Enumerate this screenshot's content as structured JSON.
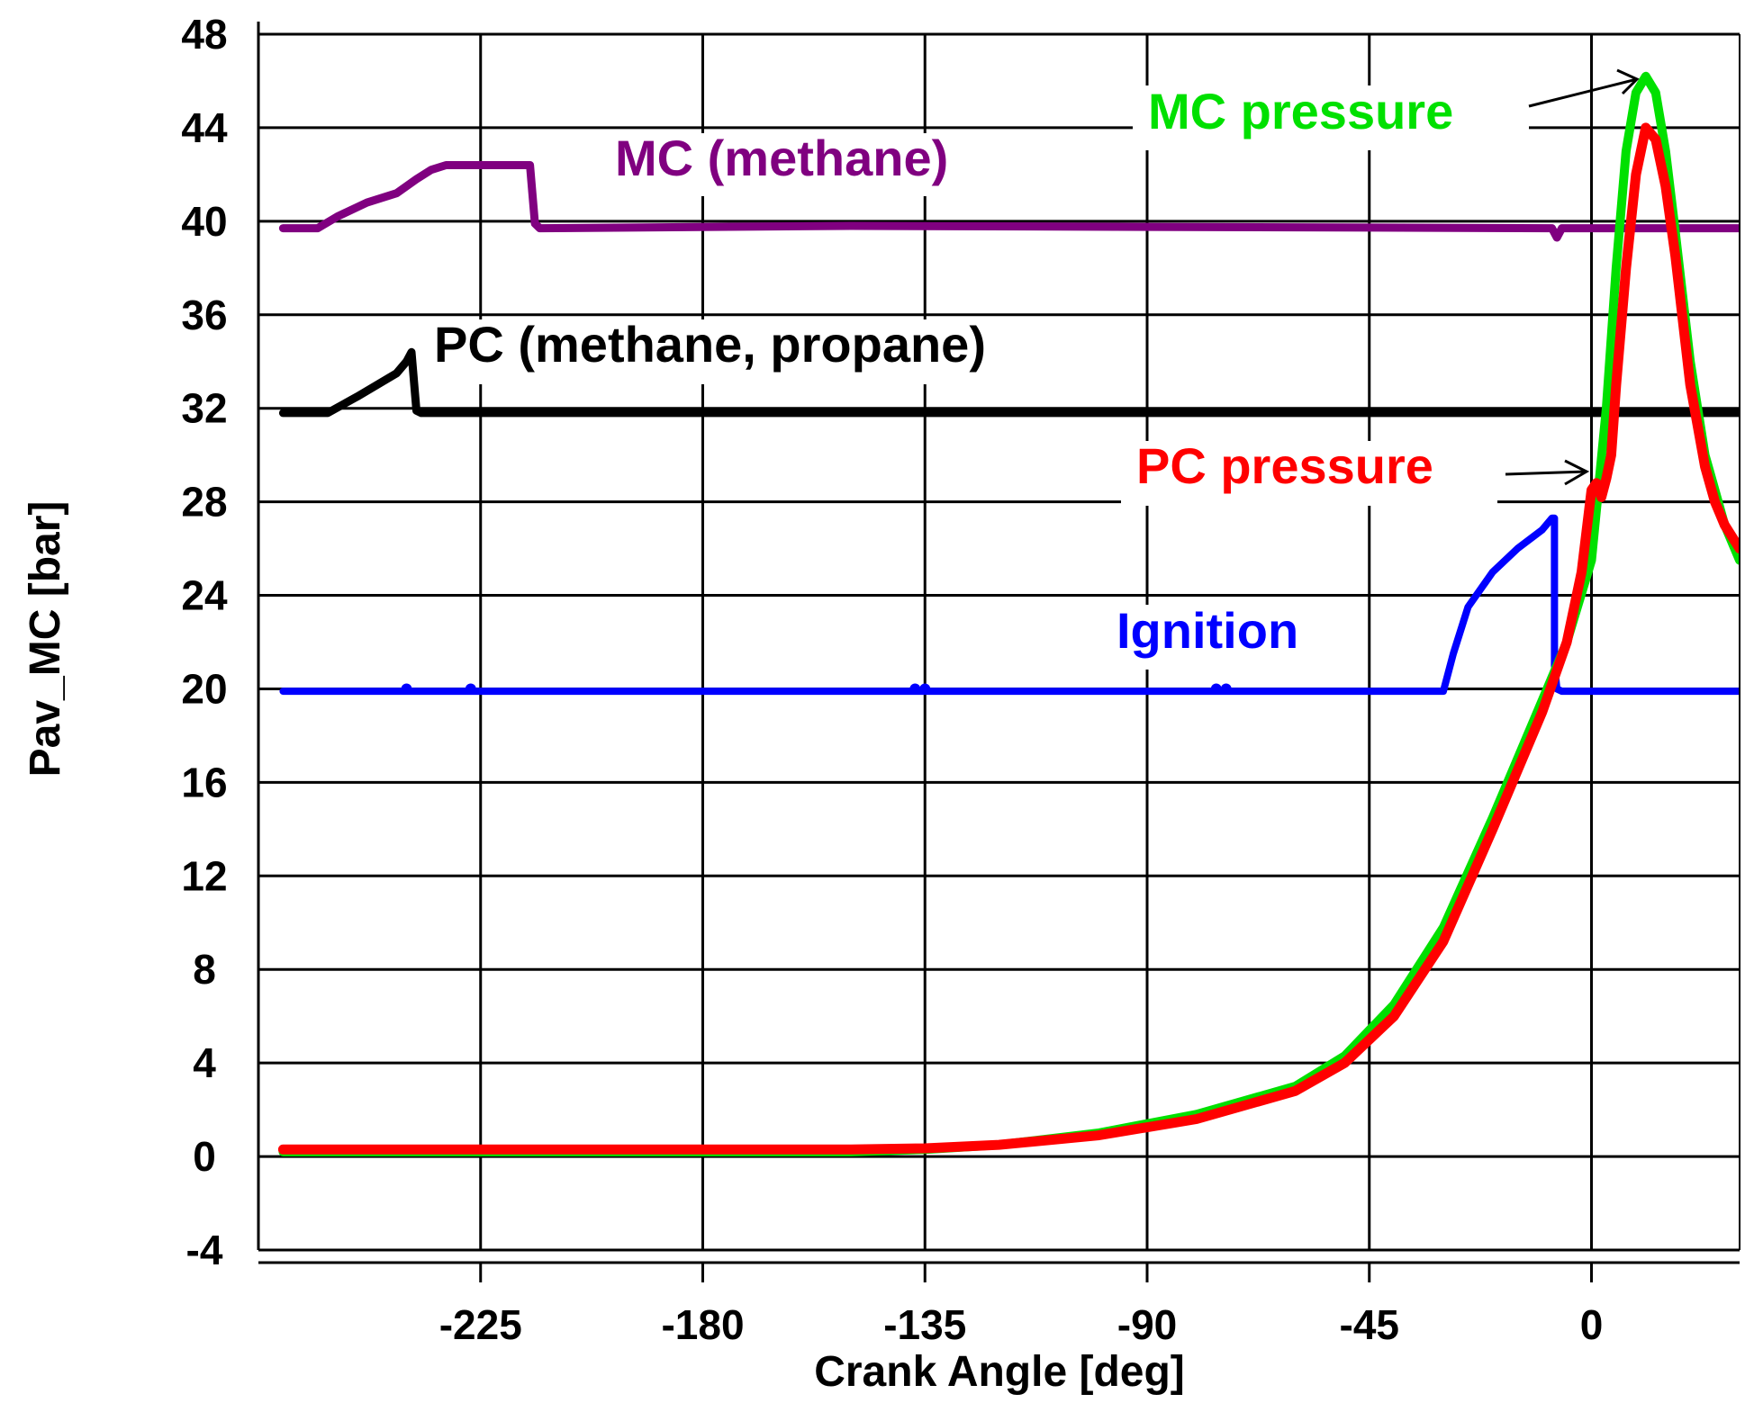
{
  "chart_data": {
    "type": "line",
    "title": "",
    "xlabel": "Crank Angle [deg]",
    "ylabel": "Pav_MC [bar]",
    "xlim": [
      -270,
      30
    ],
    "ylim": [
      -4,
      48
    ],
    "xticks": [
      -225,
      -180,
      -135,
      -90,
      -45,
      0
    ],
    "yticks": [
      -4,
      0,
      4,
      8,
      12,
      16,
      20,
      24,
      28,
      32,
      36,
      40,
      44,
      48
    ],
    "grid": true,
    "series": [
      {
        "name": "MC (methane)",
        "color": "#800080",
        "x": [
          -265,
          -258,
          -254,
          -248,
          -242,
          -238,
          -235,
          -232,
          -215,
          -214,
          -213,
          -150,
          -8,
          -7,
          -6,
          30
        ],
        "y": [
          39.7,
          39.7,
          40.2,
          40.8,
          41.2,
          41.8,
          42.2,
          42.4,
          42.4,
          39.9,
          39.7,
          39.8,
          39.7,
          39.3,
          39.7,
          39.7
        ]
      },
      {
        "name": "PC (methane, propane)",
        "color": "#000000",
        "x": [
          -265,
          -256,
          -250,
          -246,
          -242,
          -240,
          -239,
          -238,
          -237,
          30
        ],
        "y": [
          31.8,
          31.8,
          32.5,
          33.0,
          33.5,
          34.0,
          34.4,
          31.9,
          31.8,
          31.8
        ]
      },
      {
        "name": "Ignition",
        "color": "#0000ff",
        "x": [
          -265,
          -30,
          -28,
          -25,
          -20,
          -15,
          -10,
          -8,
          -7.5,
          -7.5,
          -7,
          -6,
          30
        ],
        "y": [
          19.9,
          19.9,
          21.5,
          23.5,
          25.0,
          26.0,
          26.8,
          27.3,
          27.3,
          21.0,
          20.0,
          19.9,
          19.9
        ],
        "markers_x": [
          -240,
          -227,
          -137,
          -135,
          -76,
          -74
        ],
        "markers_y": [
          20.0,
          20.0,
          20.0,
          20.0,
          20.0,
          20.0
        ]
      },
      {
        "name": "MC pressure",
        "color": "#00e000",
        "x": [
          -265,
          -150,
          -135,
          -120,
          -100,
          -80,
          -60,
          -50,
          -40,
          -30,
          -20,
          -10,
          -5,
          0,
          3,
          5,
          7,
          9,
          11,
          13,
          15,
          17,
          20,
          23,
          25,
          27,
          30
        ],
        "y": [
          0.2,
          0.2,
          0.3,
          0.5,
          1.0,
          1.8,
          3.0,
          4.3,
          6.5,
          9.8,
          14.5,
          19.5,
          22.0,
          25.5,
          32.0,
          38.0,
          43.0,
          45.5,
          46.2,
          45.5,
          43.0,
          39.5,
          34.0,
          30.0,
          28.5,
          27.0,
          25.5
        ]
      },
      {
        "name": "PC pressure",
        "color": "#ff0000",
        "x": [
          -265,
          -150,
          -135,
          -120,
          -100,
          -80,
          -60,
          -50,
          -40,
          -30,
          -20,
          -10,
          -5,
          -2,
          0,
          1,
          2,
          3,
          4,
          5,
          7,
          9,
          11,
          13,
          15,
          17,
          20,
          23,
          25,
          27,
          30
        ],
        "y": [
          0.3,
          0.3,
          0.35,
          0.5,
          0.9,
          1.6,
          2.8,
          4.0,
          6.0,
          9.2,
          14.0,
          19.0,
          22.0,
          25.0,
          28.5,
          28.8,
          28.2,
          29.0,
          30.0,
          33.0,
          38.0,
          42.0,
          44.0,
          43.5,
          41.5,
          38.5,
          33.0,
          29.5,
          28.0,
          27.0,
          26.0
        ]
      }
    ],
    "annotations": [
      {
        "text": "MC (methane)",
        "color": "#800080"
      },
      {
        "text": "PC (methane, propane)",
        "color": "#000000"
      },
      {
        "text": "MC pressure",
        "color": "#00e000"
      },
      {
        "text": "PC pressure",
        "color": "#ff0000"
      },
      {
        "text": "Ignition",
        "color": "#0000ff"
      }
    ]
  }
}
